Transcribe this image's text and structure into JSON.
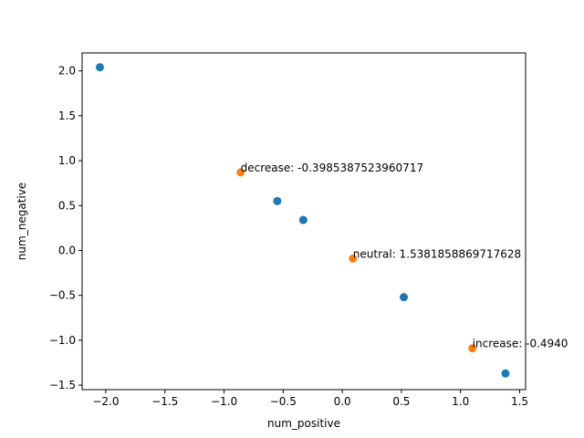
{
  "chart_data": {
    "type": "scatter",
    "title": "",
    "xlabel": "num_positive",
    "ylabel": "num_negative",
    "xlim": [
      -2.2,
      1.55
    ],
    "ylim": [
      -1.55,
      2.2
    ],
    "xticks": [
      "−2.0",
      "−1.5",
      "−1.0",
      "−0.5",
      "0.0",
      "0.5",
      "1.0",
      "1.5"
    ],
    "xtick_values": [
      -2.0,
      -1.5,
      -1.0,
      -0.5,
      0.0,
      0.5,
      1.0,
      1.5
    ],
    "yticks": [
      "−1.5",
      "−1.0",
      "−0.5",
      "0.0",
      "0.5",
      "1.0",
      "1.5",
      "2.0"
    ],
    "ytick_values": [
      -1.5,
      -1.0,
      -0.5,
      0.0,
      0.5,
      1.0,
      1.5,
      2.0
    ],
    "grid": false,
    "series": [
      {
        "color": "#1f77b4",
        "points": [
          {
            "x": -2.05,
            "y": 2.04
          },
          {
            "x": -0.55,
            "y": 0.55
          },
          {
            "x": -0.33,
            "y": 0.34
          },
          {
            "x": 0.52,
            "y": -0.52
          },
          {
            "x": 1.38,
            "y": -1.37
          }
        ]
      },
      {
        "color": "#ff7f0e",
        "points": [
          {
            "x": -0.86,
            "y": 0.87
          },
          {
            "x": 0.09,
            "y": -0.09
          },
          {
            "x": 1.1,
            "y": -1.09
          }
        ]
      }
    ],
    "annotations": [
      {
        "x": -0.86,
        "y": 0.87,
        "text": "decrease: -0.3985387523960717"
      },
      {
        "x": 0.09,
        "y": -0.09,
        "text": "neutral: 1.5381858869717628"
      },
      {
        "x": 1.1,
        "y": -1.09,
        "text": "increase: -0.4940"
      }
    ]
  }
}
